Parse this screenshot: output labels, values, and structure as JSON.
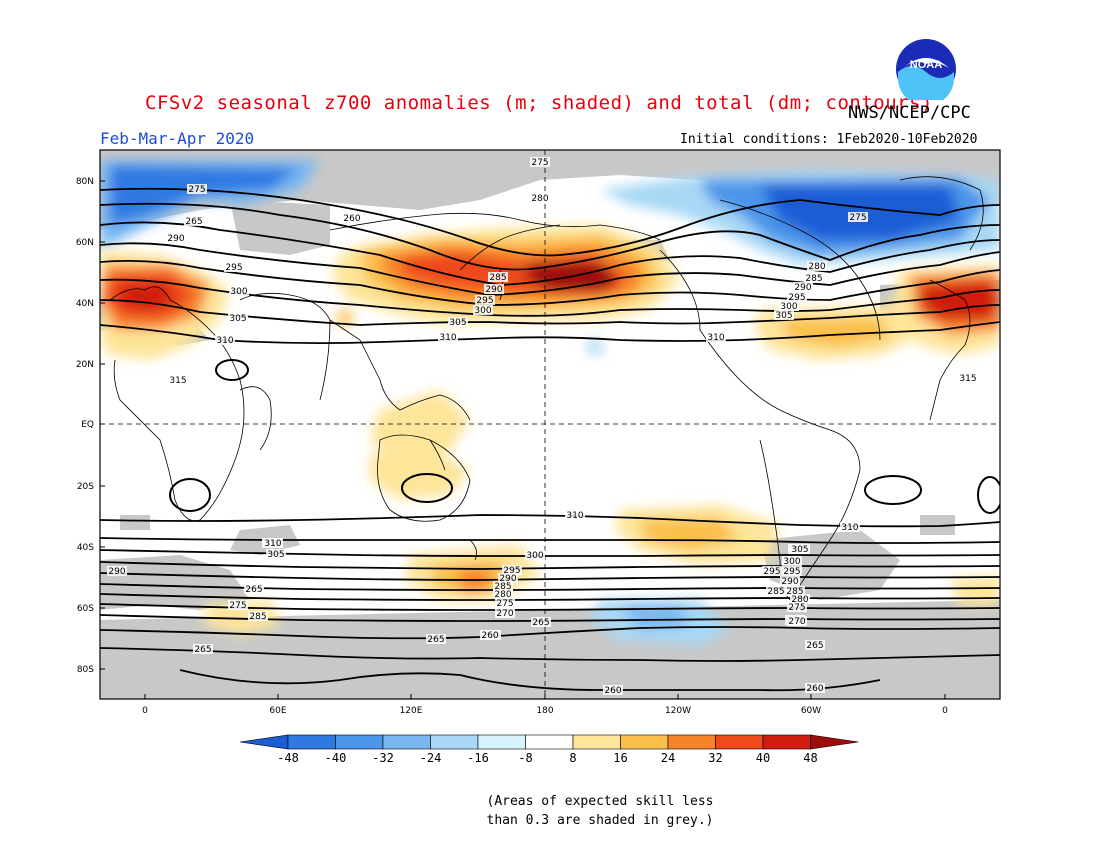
{
  "header": {
    "title": "CFSv2 seasonal z700 anomalies (m; shaded) and total (dm; contours)",
    "organization": "NWS/NCEP/CPC",
    "period": "Feb-Mar-Apr 2020",
    "initial_conditions": "Initial conditions: 1Feb2020-10Feb2020",
    "logo_text": "NOAA"
  },
  "map": {
    "lat_labels": [
      "80N",
      "60N",
      "40N",
      "20N",
      "EQ",
      "20S",
      "40S",
      "60S",
      "80S"
    ],
    "lon_labels": [
      "0",
      "60E",
      "120E",
      "180",
      "120W",
      "60W",
      "0"
    ],
    "contour_labels": [
      "275",
      "265",
      "290",
      "295",
      "300",
      "305",
      "310",
      "315",
      "260",
      "275",
      "280",
      "285",
      "290",
      "295",
      "300",
      "305",
      "310",
      "275",
      "280",
      "285",
      "290",
      "295",
      "300",
      "305",
      "310",
      "315",
      "310",
      "310",
      "305",
      "295",
      "285",
      "265",
      "270",
      "285",
      "290",
      "310",
      "305",
      "300",
      "295",
      "290",
      "285",
      "280",
      "275",
      "270",
      "265",
      "260",
      "265",
      "310",
      "305",
      "300",
      "295",
      "290",
      "285",
      "280",
      "275",
      "270",
      "265",
      "260",
      "260",
      "260",
      "275",
      "265"
    ]
  },
  "colorbar": {
    "ticks": [
      "-48",
      "-40",
      "-32",
      "-24",
      "-16",
      "-8",
      "8",
      "16",
      "24",
      "32",
      "40",
      "48"
    ],
    "colors": [
      "#1c5dd6",
      "#2f79e2",
      "#4b95ea",
      "#78b7f2",
      "#a8d8f5",
      "#d6f2fb",
      "#ffffff",
      "#fde59a",
      "#fbbf4a",
      "#f8842a",
      "#ee4a1c",
      "#d01d10",
      "#9e0d0a"
    ]
  },
  "note": {
    "line1": "(Areas of expected skill less",
    "line2": "than 0.3 are shaded in grey.)"
  }
}
